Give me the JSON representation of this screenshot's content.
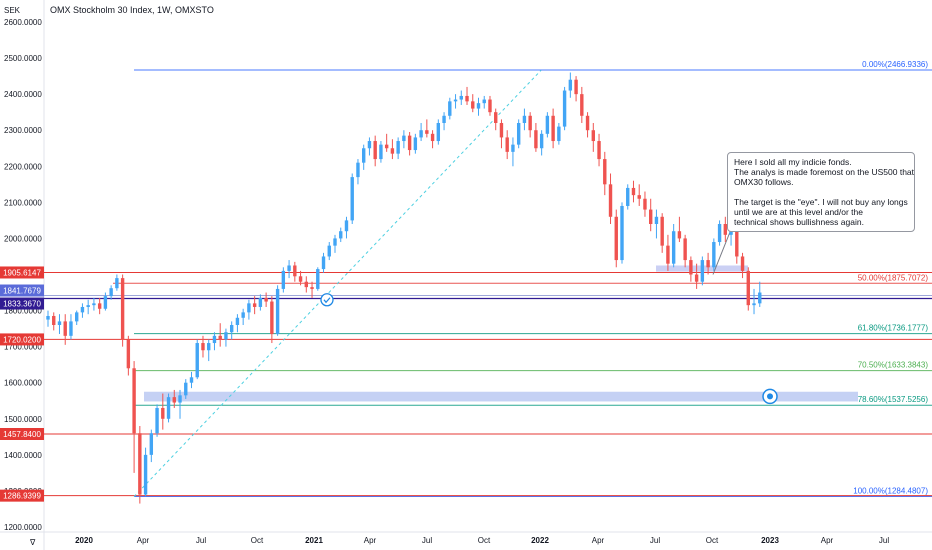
{
  "chart_data": {
    "type": "candlestick",
    "title": "OMX Stockholm 30 Index, 1W, OMXSTO",
    "currency_label": "SEK",
    "ylim": [
      1180,
      2640
    ],
    "y_ticks": [
      "2600.0000",
      "2500.0000",
      "2400.0000",
      "2300.0000",
      "2200.0000",
      "2100.0000",
      "2000.0000",
      "1900.0000",
      "1800.0000",
      "1700.0000",
      "1600.0000",
      "1500.0000",
      "1400.0000",
      "1300.0000",
      "1200.0000"
    ],
    "x_ticks": [
      "2020",
      "Apr",
      "Jul",
      "Oct",
      "2021",
      "Apr",
      "Jul",
      "Oct",
      "2022",
      "Apr",
      "Jul",
      "Oct",
      "2023",
      "Apr",
      "Jul"
    ],
    "price_labels": [
      {
        "text": "1905.6147",
        "value": 1905.6147,
        "color": "#e53935"
      },
      {
        "text": "1841.7679",
        "value": 1841.7679,
        "color": "#5b6bd9"
      },
      {
        "text": "1833.3670",
        "value": 1833.367,
        "color": "#311b92"
      },
      {
        "text": "1720.0200",
        "value": 1720.02,
        "color": "#e53935"
      },
      {
        "text": "1457.8400",
        "value": 1457.84,
        "color": "#e53935"
      },
      {
        "text": "1286.9399",
        "value": 1286.9399,
        "color": "#e53935"
      }
    ],
    "fib_levels": [
      {
        "label": "0.00%(2466.9336)",
        "value": 2466.9336,
        "color": "#2962ff"
      },
      {
        "label": "50.00%(1875.7072)",
        "value": 1875.7072,
        "color": "#e53935"
      },
      {
        "label": "61.80%(1736.1777)",
        "value": 1736.1777,
        "color": "#089981"
      },
      {
        "label": "70.50%(1633.3843)",
        "value": 1633.3843,
        "color": "#4caf50"
      },
      {
        "label": "78.60%(1537.5256)",
        "value": 1537.5256,
        "color": "#089981"
      },
      {
        "label": "100.00%(1284.4807)",
        "value": 1284.4807,
        "color": "#2962ff"
      }
    ],
    "annotation": [
      "Here I sold all my indicie fonds.",
      "The analys is made foremost on the US500 that",
      "OMX30 follows.",
      "",
      "The target is the \"eye\". I will not buy any longs",
      "until we are at this level and/or the",
      " technical shows bullishness again."
    ],
    "candles": [
      {
        "o": 1775,
        "h": 1800,
        "l": 1755,
        "c": 1785
      },
      {
        "o": 1785,
        "h": 1795,
        "l": 1745,
        "c": 1760
      },
      {
        "o": 1760,
        "h": 1790,
        "l": 1735,
        "c": 1770
      },
      {
        "o": 1770,
        "h": 1790,
        "l": 1705,
        "c": 1730
      },
      {
        "o": 1730,
        "h": 1790,
        "l": 1720,
        "c": 1770
      },
      {
        "o": 1770,
        "h": 1800,
        "l": 1760,
        "c": 1795
      },
      {
        "o": 1795,
        "h": 1820,
        "l": 1780,
        "c": 1810
      },
      {
        "o": 1810,
        "h": 1830,
        "l": 1790,
        "c": 1815
      },
      {
        "o": 1815,
        "h": 1835,
        "l": 1800,
        "c": 1820
      },
      {
        "o": 1820,
        "h": 1835,
        "l": 1790,
        "c": 1805
      },
      {
        "o": 1805,
        "h": 1850,
        "l": 1800,
        "c": 1840
      },
      {
        "o": 1840,
        "h": 1870,
        "l": 1830,
        "c": 1862
      },
      {
        "o": 1862,
        "h": 1900,
        "l": 1855,
        "c": 1890
      },
      {
        "o": 1890,
        "h": 1900,
        "l": 1700,
        "c": 1720
      },
      {
        "o": 1720,
        "h": 1730,
        "l": 1620,
        "c": 1640
      },
      {
        "o": 1640,
        "h": 1660,
        "l": 1350,
        "c": 1460
      },
      {
        "o": 1460,
        "h": 1480,
        "l": 1265,
        "c": 1290
      },
      {
        "o": 1290,
        "h": 1420,
        "l": 1285,
        "c": 1400
      },
      {
        "o": 1400,
        "h": 1470,
        "l": 1380,
        "c": 1460
      },
      {
        "o": 1460,
        "h": 1540,
        "l": 1450,
        "c": 1530
      },
      {
        "o": 1530,
        "h": 1570,
        "l": 1470,
        "c": 1500
      },
      {
        "o": 1500,
        "h": 1570,
        "l": 1490,
        "c": 1560
      },
      {
        "o": 1560,
        "h": 1580,
        "l": 1530,
        "c": 1545
      },
      {
        "o": 1545,
        "h": 1580,
        "l": 1500,
        "c": 1565
      },
      {
        "o": 1565,
        "h": 1610,
        "l": 1555,
        "c": 1600
      },
      {
        "o": 1600,
        "h": 1630,
        "l": 1585,
        "c": 1615
      },
      {
        "o": 1615,
        "h": 1720,
        "l": 1610,
        "c": 1710
      },
      {
        "o": 1710,
        "h": 1730,
        "l": 1670,
        "c": 1690
      },
      {
        "o": 1690,
        "h": 1720,
        "l": 1660,
        "c": 1710
      },
      {
        "o": 1710,
        "h": 1740,
        "l": 1690,
        "c": 1730
      },
      {
        "o": 1730,
        "h": 1765,
        "l": 1700,
        "c": 1720
      },
      {
        "o": 1720,
        "h": 1750,
        "l": 1700,
        "c": 1740
      },
      {
        "o": 1740,
        "h": 1770,
        "l": 1720,
        "c": 1760
      },
      {
        "o": 1760,
        "h": 1790,
        "l": 1740,
        "c": 1780
      },
      {
        "o": 1780,
        "h": 1805,
        "l": 1760,
        "c": 1795
      },
      {
        "o": 1795,
        "h": 1830,
        "l": 1775,
        "c": 1820
      },
      {
        "o": 1820,
        "h": 1840,
        "l": 1790,
        "c": 1810
      },
      {
        "o": 1810,
        "h": 1845,
        "l": 1800,
        "c": 1835
      },
      {
        "o": 1835,
        "h": 1850,
        "l": 1810,
        "c": 1825
      },
      {
        "o": 1825,
        "h": 1840,
        "l": 1710,
        "c": 1735
      },
      {
        "o": 1735,
        "h": 1870,
        "l": 1730,
        "c": 1860
      },
      {
        "o": 1860,
        "h": 1920,
        "l": 1850,
        "c": 1910
      },
      {
        "o": 1910,
        "h": 1940,
        "l": 1890,
        "c": 1925
      },
      {
        "o": 1925,
        "h": 1935,
        "l": 1880,
        "c": 1895
      },
      {
        "o": 1895,
        "h": 1910,
        "l": 1870,
        "c": 1880
      },
      {
        "o": 1880,
        "h": 1895,
        "l": 1850,
        "c": 1865
      },
      {
        "o": 1865,
        "h": 1880,
        "l": 1835,
        "c": 1860
      },
      {
        "o": 1860,
        "h": 1920,
        "l": 1855,
        "c": 1915
      },
      {
        "o": 1915,
        "h": 1960,
        "l": 1905,
        "c": 1950
      },
      {
        "o": 1950,
        "h": 1990,
        "l": 1940,
        "c": 1980
      },
      {
        "o": 1980,
        "h": 2010,
        "l": 1960,
        "c": 2000
      },
      {
        "o": 2000,
        "h": 2030,
        "l": 1990,
        "c": 2020
      },
      {
        "o": 2020,
        "h": 2060,
        "l": 2000,
        "c": 2050
      },
      {
        "o": 2050,
        "h": 2180,
        "l": 2040,
        "c": 2170
      },
      {
        "o": 2170,
        "h": 2220,
        "l": 2150,
        "c": 2210
      },
      {
        "o": 2210,
        "h": 2260,
        "l": 2190,
        "c": 2250
      },
      {
        "o": 2250,
        "h": 2280,
        "l": 2230,
        "c": 2270
      },
      {
        "o": 2270,
        "h": 2285,
        "l": 2200,
        "c": 2220
      },
      {
        "o": 2220,
        "h": 2270,
        "l": 2210,
        "c": 2260
      },
      {
        "o": 2260,
        "h": 2290,
        "l": 2240,
        "c": 2250
      },
      {
        "o": 2250,
        "h": 2275,
        "l": 2220,
        "c": 2235
      },
      {
        "o": 2235,
        "h": 2280,
        "l": 2220,
        "c": 2270
      },
      {
        "o": 2270,
        "h": 2300,
        "l": 2250,
        "c": 2285
      },
      {
        "o": 2285,
        "h": 2295,
        "l": 2230,
        "c": 2245
      },
      {
        "o": 2245,
        "h": 2290,
        "l": 2235,
        "c": 2280
      },
      {
        "o": 2280,
        "h": 2320,
        "l": 2270,
        "c": 2300
      },
      {
        "o": 2300,
        "h": 2330,
        "l": 2280,
        "c": 2290
      },
      {
        "o": 2290,
        "h": 2300,
        "l": 2250,
        "c": 2270
      },
      {
        "o": 2270,
        "h": 2330,
        "l": 2260,
        "c": 2320
      },
      {
        "o": 2320,
        "h": 2350,
        "l": 2300,
        "c": 2340
      },
      {
        "o": 2340,
        "h": 2390,
        "l": 2330,
        "c": 2380
      },
      {
        "o": 2380,
        "h": 2400,
        "l": 2360,
        "c": 2385
      },
      {
        "o": 2385,
        "h": 2410,
        "l": 2370,
        "c": 2395
      },
      {
        "o": 2395,
        "h": 2420,
        "l": 2370,
        "c": 2380
      },
      {
        "o": 2380,
        "h": 2400,
        "l": 2350,
        "c": 2360
      },
      {
        "o": 2360,
        "h": 2390,
        "l": 2340,
        "c": 2375
      },
      {
        "o": 2375,
        "h": 2395,
        "l": 2360,
        "c": 2385
      },
      {
        "o": 2385,
        "h": 2395,
        "l": 2340,
        "c": 2350
      },
      {
        "o": 2350,
        "h": 2360,
        "l": 2300,
        "c": 2320
      },
      {
        "o": 2320,
        "h": 2330,
        "l": 2250,
        "c": 2280
      },
      {
        "o": 2280,
        "h": 2300,
        "l": 2220,
        "c": 2240
      },
      {
        "o": 2240,
        "h": 2280,
        "l": 2200,
        "c": 2260
      },
      {
        "o": 2260,
        "h": 2330,
        "l": 2250,
        "c": 2320
      },
      {
        "o": 2320,
        "h": 2360,
        "l": 2300,
        "c": 2340
      },
      {
        "o": 2340,
        "h": 2350,
        "l": 2280,
        "c": 2300
      },
      {
        "o": 2300,
        "h": 2320,
        "l": 2240,
        "c": 2250
      },
      {
        "o": 2250,
        "h": 2300,
        "l": 2230,
        "c": 2290
      },
      {
        "o": 2290,
        "h": 2350,
        "l": 2280,
        "c": 2340
      },
      {
        "o": 2340,
        "h": 2360,
        "l": 2250,
        "c": 2270
      },
      {
        "o": 2270,
        "h": 2320,
        "l": 2260,
        "c": 2310
      },
      {
        "o": 2310,
        "h": 2420,
        "l": 2300,
        "c": 2410
      },
      {
        "o": 2410,
        "h": 2460,
        "l": 2390,
        "c": 2440
      },
      {
        "o": 2440,
        "h": 2450,
        "l": 2380,
        "c": 2400
      },
      {
        "o": 2400,
        "h": 2420,
        "l": 2320,
        "c": 2340
      },
      {
        "o": 2340,
        "h": 2350,
        "l": 2280,
        "c": 2300
      },
      {
        "o": 2300,
        "h": 2320,
        "l": 2240,
        "c": 2270
      },
      {
        "o": 2270,
        "h": 2290,
        "l": 2200,
        "c": 2220
      },
      {
        "o": 2220,
        "h": 2240,
        "l": 2120,
        "c": 2150
      },
      {
        "o": 2150,
        "h": 2180,
        "l": 2040,
        "c": 2060
      },
      {
        "o": 2060,
        "h": 2080,
        "l": 1920,
        "c": 1940
      },
      {
        "o": 1940,
        "h": 2100,
        "l": 1930,
        "c": 2090
      },
      {
        "o": 2090,
        "h": 2150,
        "l": 2080,
        "c": 2140
      },
      {
        "o": 2140,
        "h": 2160,
        "l": 2100,
        "c": 2120
      },
      {
        "o": 2120,
        "h": 2150,
        "l": 2090,
        "c": 2110
      },
      {
        "o": 2110,
        "h": 2130,
        "l": 2060,
        "c": 2080
      },
      {
        "o": 2080,
        "h": 2110,
        "l": 2020,
        "c": 2040
      },
      {
        "o": 2040,
        "h": 2080,
        "l": 2000,
        "c": 2060
      },
      {
        "o": 2060,
        "h": 2070,
        "l": 1960,
        "c": 1980
      },
      {
        "o": 1980,
        "h": 2010,
        "l": 1910,
        "c": 1930
      },
      {
        "o": 1930,
        "h": 2040,
        "l": 1920,
        "c": 2020
      },
      {
        "o": 2020,
        "h": 2060,
        "l": 1990,
        "c": 2000
      },
      {
        "o": 2000,
        "h": 2010,
        "l": 1920,
        "c": 1940
      },
      {
        "o": 1940,
        "h": 1950,
        "l": 1880,
        "c": 1900
      },
      {
        "o": 1900,
        "h": 1930,
        "l": 1860,
        "c": 1880
      },
      {
        "o": 1880,
        "h": 1950,
        "l": 1870,
        "c": 1940
      },
      {
        "o": 1940,
        "h": 1960,
        "l": 1900,
        "c": 1920
      },
      {
        "o": 1920,
        "h": 2000,
        "l": 1910,
        "c": 1990
      },
      {
        "o": 1990,
        "h": 2050,
        "l": 1980,
        "c": 2040
      },
      {
        "o": 2040,
        "h": 2060,
        "l": 1990,
        "c": 2010
      },
      {
        "o": 2010,
        "h": 2050,
        "l": 1980,
        "c": 2030
      },
      {
        "o": 2030,
        "h": 2040,
        "l": 1930,
        "c": 1950
      },
      {
        "o": 1950,
        "h": 1960,
        "l": 1890,
        "c": 1910
      },
      {
        "o": 1910,
        "h": 1920,
        "l": 1800,
        "c": 1815
      },
      {
        "o": 1815,
        "h": 1860,
        "l": 1790,
        "c": 1820
      },
      {
        "o": 1820,
        "h": 1880,
        "l": 1810,
        "c": 1850
      }
    ]
  }
}
